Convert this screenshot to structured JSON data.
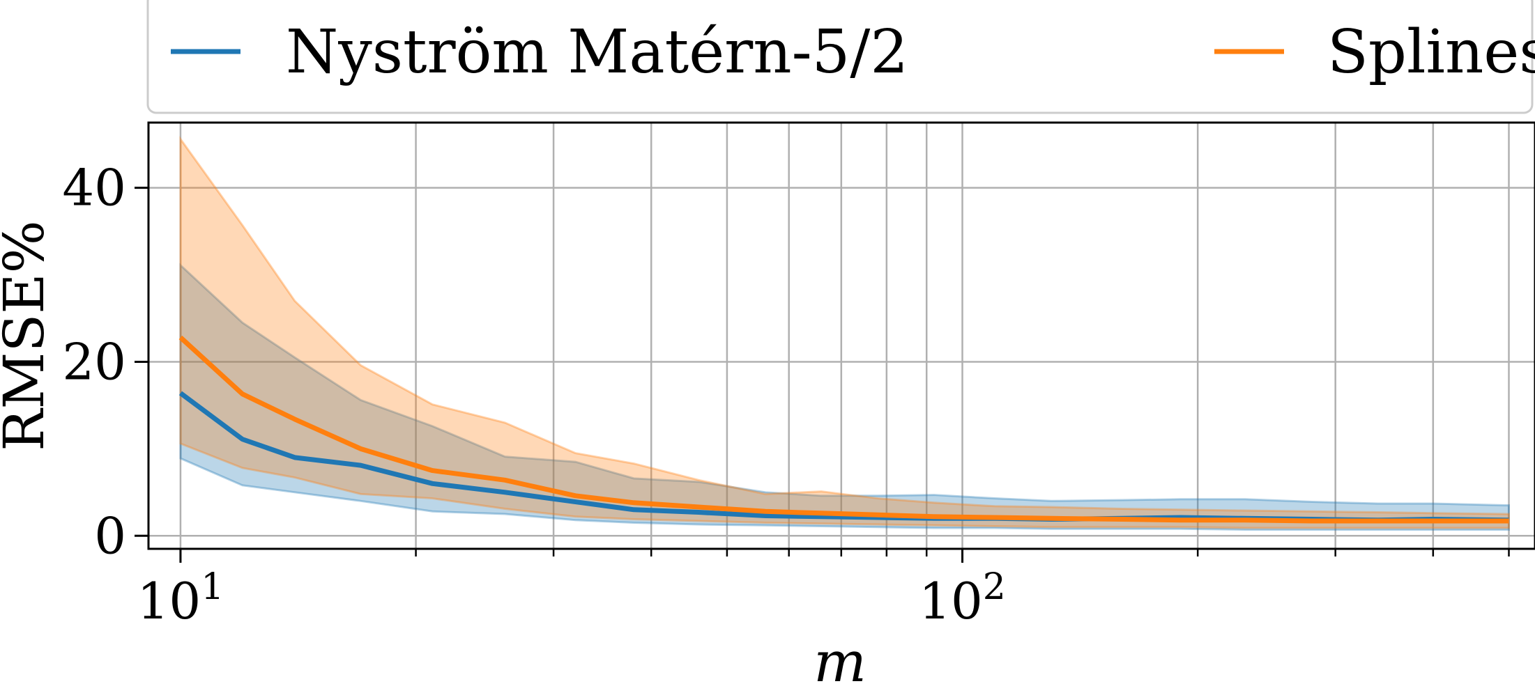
{
  "chart_data": {
    "type": "line",
    "xlabel": "m",
    "ylabel": "RMSE%",
    "x_scale": "log",
    "xlim": [
      9.1,
      540
    ],
    "ylim": [
      -1.5,
      47.5
    ],
    "grid": true,
    "legend_position": "top",
    "x_ticks": [
      {
        "value": 10,
        "base": "10",
        "exp": "1"
      },
      {
        "value": 100,
        "base": "10",
        "exp": "2"
      }
    ],
    "y_ticks": [
      {
        "value": 0,
        "label": "0"
      },
      {
        "value": 20,
        "label": "20"
      },
      {
        "value": 40,
        "label": "40"
      }
    ],
    "x": [
      10,
      12,
      14,
      17,
      21,
      26,
      32,
      38,
      46,
      56,
      66,
      78,
      92,
      110,
      130,
      160,
      190,
      230,
      280,
      340,
      400,
      500
    ],
    "series": [
      {
        "name": "Nyström Matérn-5/2",
        "color": "#1f77b4",
        "mean": [
          16.4,
          11.1,
          9.0,
          8.1,
          6.0,
          5.0,
          3.9,
          3.0,
          2.7,
          2.3,
          2.2,
          2.1,
          2.0,
          2.0,
          1.9,
          2.0,
          2.1,
          2.0,
          1.9,
          1.8,
          1.9,
          1.8
        ],
        "lower": [
          8.9,
          5.8,
          5.0,
          4.0,
          2.8,
          2.5,
          1.8,
          1.5,
          1.3,
          1.2,
          1.1,
          1.0,
          0.9,
          0.9,
          0.8,
          0.8,
          0.8,
          0.7,
          0.7,
          0.7,
          0.7,
          0.7
        ],
        "upper": [
          31.1,
          24.5,
          20.5,
          15.6,
          12.6,
          9.1,
          8.5,
          6.6,
          6.2,
          5.0,
          4.6,
          4.6,
          4.7,
          4.3,
          4.0,
          4.1,
          4.2,
          4.2,
          3.9,
          3.7,
          3.7,
          3.5
        ]
      },
      {
        "name": "Splines",
        "color": "#ff7f0e",
        "mean": [
          22.8,
          16.3,
          13.4,
          10.0,
          7.5,
          6.4,
          4.6,
          3.8,
          3.3,
          2.8,
          2.6,
          2.4,
          2.2,
          2.1,
          2.0,
          1.9,
          1.8,
          1.8,
          1.7,
          1.7,
          1.7,
          1.7
        ],
        "lower": [
          10.6,
          7.8,
          6.7,
          4.8,
          4.3,
          3.1,
          2.2,
          1.9,
          1.7,
          1.5,
          1.4,
          1.3,
          1.2,
          1.1,
          1.0,
          1.0,
          1.0,
          0.9,
          0.9,
          0.9,
          0.9,
          0.9
        ],
        "upper": [
          45.6,
          35.7,
          27.0,
          19.6,
          15.1,
          13.0,
          9.5,
          8.3,
          6.4,
          4.8,
          5.1,
          4.3,
          3.8,
          3.4,
          3.3,
          3.1,
          3.0,
          2.9,
          2.8,
          2.7,
          2.6,
          2.5
        ]
      }
    ]
  }
}
